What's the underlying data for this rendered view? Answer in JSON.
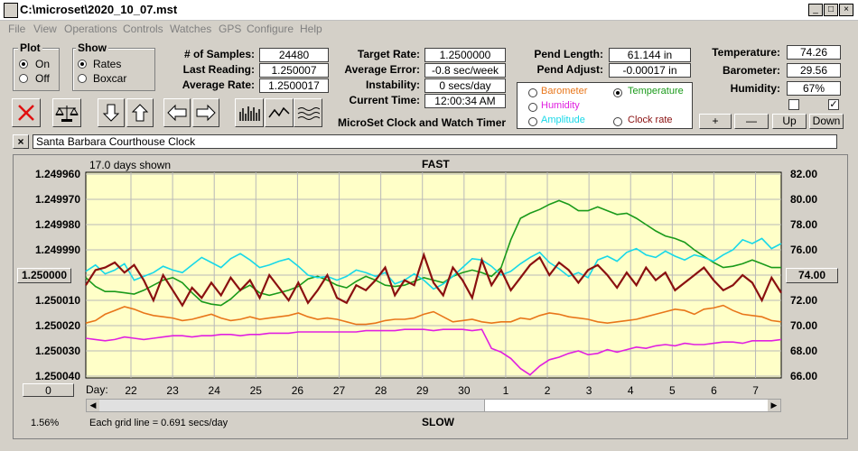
{
  "window": {
    "title": "C:\\microset\\2020_10_07.mst",
    "min_glyph": "_",
    "max_glyph": "□",
    "close_glyph": "×"
  },
  "menu": [
    "File",
    "View",
    "Operations",
    "Controls",
    "Watches",
    "GPS",
    "Configure",
    "Help"
  ],
  "plot_group": {
    "title": "Plot",
    "options": [
      "On",
      "Off"
    ],
    "selected": "On"
  },
  "show_group": {
    "title": "Show",
    "options": [
      "Rates",
      "Boxcar"
    ],
    "selected": "Rates"
  },
  "stats_left": {
    "samples_label": "# of Samples:",
    "samples_value": "24480",
    "last_label": "Last Reading:",
    "last_value": "1.250007",
    "avg_label": "Average Rate:",
    "avg_value": "1.2500017"
  },
  "stats_mid": {
    "target_label": "Target Rate:",
    "target_value": "1.2500000",
    "avgerr_label": "Average Error:",
    "avgerr_value": "-0.8 sec/week",
    "instab_label": "Instability:",
    "instab_value": "0 secs/day",
    "time_label": "Current Time:",
    "time_value": "12:00:34 AM",
    "app_caption": "MicroSet Clock and Watch Timer"
  },
  "pend": {
    "length_label": "Pend Length:",
    "length_value": "61.144 in",
    "adjust_label": "Pend Adjust:",
    "adjust_value": "-0.00017 in"
  },
  "env": {
    "temp_label": "Temperature:",
    "temp_value": "74.26",
    "baro_label": "Barometer:",
    "baro_value": "29.56",
    "hum_label": "Humidity:",
    "hum_value": "67%",
    "check1": false,
    "check2": true
  },
  "plot_options": {
    "items": [
      {
        "label": "Barometer",
        "color": "#e8761a",
        "selected": false
      },
      {
        "label": "Temperature",
        "color": "#1a9a1a",
        "selected": true
      },
      {
        "label": "Humidity",
        "color": "#e020e0",
        "selected": false
      },
      {
        "label": "Amplitude",
        "color": "#18d8e8",
        "selected": false
      },
      {
        "label": "Clock rate",
        "color": "#8a1010",
        "selected": false
      }
    ]
  },
  "scale_buttons": {
    "plus": "+",
    "minus": "—",
    "up": "Up",
    "down": "Down"
  },
  "watch_name": "Santa Barbara Courthouse Clock",
  "close_x": "×",
  "chart_data": {
    "type": "line",
    "days_shown": "17.0 days shown",
    "top_label": "FAST",
    "bottom_label": "SLOW",
    "grid_note": "Each grid line = 0.691 secs/day",
    "percent": "1.56%",
    "left_button": "1.250000",
    "right_button": "74.00",
    "zero_button": "0",
    "day_prefix": "Day:",
    "y_left_ticks": [
      "1.249960",
      "1.249970",
      "1.249980",
      "1.249990",
      "",
      "1.250010",
      "1.250020",
      "1.250030",
      "1.250040"
    ],
    "y_right_ticks": [
      "82.00",
      "80.00",
      "78.00",
      "76.00",
      "",
      "72.00",
      "70.00",
      "68.00",
      "66.00"
    ],
    "x_ticks": [
      "22",
      "23",
      "24",
      "25",
      "26",
      "27",
      "28",
      "29",
      "30",
      "1",
      "2",
      "3",
      "4",
      "5",
      "6",
      "7"
    ],
    "left_ylim": [
      1.24996,
      1.25004
    ],
    "right_ylim": [
      66,
      82
    ],
    "series": [
      {
        "name": "Barometer",
        "color": "#e8761a",
        "axis": "right",
        "values": [
          70.2,
          70.4,
          70.9,
          71.2,
          71.5,
          71.3,
          71.0,
          70.8,
          70.7,
          70.6,
          70.4,
          70.5,
          70.7,
          70.9,
          70.6,
          70.4,
          70.5,
          70.7,
          70.5,
          70.6,
          70.7,
          70.8,
          71.0,
          70.7,
          70.5,
          70.6,
          70.5,
          70.3,
          70.1,
          70.1,
          70.2,
          70.4,
          70.5,
          70.5,
          70.6,
          70.9,
          71.1,
          70.7,
          70.3,
          70.4,
          70.5,
          70.3,
          70.2,
          70.3,
          70.3,
          70.6,
          70.5,
          70.8,
          71.0,
          70.9,
          70.7,
          70.6,
          70.5,
          70.3,
          70.2,
          70.3,
          70.4,
          70.5,
          70.7,
          70.9,
          71.1,
          71.3,
          71.2,
          70.9,
          71.3,
          71.4,
          71.6,
          71.2,
          70.9,
          70.8,
          70.7,
          70.4,
          70.3
        ]
      },
      {
        "name": "Temperature",
        "color": "#1a9a1a",
        "axis": "right",
        "values": [
          73.8,
          73.1,
          72.7,
          72.7,
          72.6,
          72.5,
          72.8,
          73.2,
          73.6,
          73.8,
          73.4,
          72.6,
          71.9,
          71.7,
          71.6,
          72.1,
          72.8,
          73.2,
          72.6,
          72.4,
          72.6,
          72.8,
          73.1,
          73.7,
          73.9,
          73.6,
          73.2,
          73.0,
          73.5,
          73.9,
          73.6,
          73.2,
          73.1,
          73.2,
          73.5,
          73.8,
          73.6,
          73.4,
          73.9,
          74.2,
          74.4,
          74.2,
          73.9,
          74.6,
          76.8,
          78.5,
          78.9,
          79.2,
          79.6,
          79.9,
          79.6,
          79.1,
          79.1,
          79.4,
          79.1,
          78.8,
          78.9,
          78.5,
          78.0,
          77.5,
          77.1,
          76.9,
          76.6,
          76.0,
          75.5,
          75.0,
          74.6,
          74.7,
          74.9,
          75.2,
          74.9,
          74.6,
          74.6
        ]
      },
      {
        "name": "Humidity",
        "color": "#e020e0",
        "axis": "right",
        "values": [
          69.0,
          68.9,
          68.8,
          68.9,
          69.1,
          69.0,
          68.9,
          69.0,
          69.1,
          69.2,
          69.2,
          69.1,
          69.2,
          69.2,
          69.3,
          69.3,
          69.2,
          69.3,
          69.3,
          69.4,
          69.4,
          69.4,
          69.5,
          69.5,
          69.5,
          69.5,
          69.5,
          69.5,
          69.5,
          69.6,
          69.6,
          69.6,
          69.6,
          69.7,
          69.7,
          69.7,
          69.6,
          69.7,
          69.7,
          69.7,
          69.6,
          69.7,
          68.2,
          67.9,
          67.4,
          66.6,
          66.1,
          66.8,
          67.3,
          67.5,
          67.8,
          68.0,
          67.7,
          67.8,
          68.1,
          67.9,
          68.1,
          68.3,
          68.2,
          68.4,
          68.5,
          68.4,
          68.6,
          68.5,
          68.5,
          68.6,
          68.7,
          68.7,
          68.6,
          68.8,
          68.8,
          68.8,
          68.9
        ]
      },
      {
        "name": "Amplitude",
        "color": "#18d8e8",
        "axis": "right",
        "values": [
          74.3,
          74.8,
          74.1,
          74.4,
          74.9,
          73.6,
          73.9,
          74.2,
          74.7,
          74.4,
          74.2,
          74.8,
          75.4,
          75.0,
          74.6,
          75.3,
          75.7,
          75.2,
          74.6,
          74.8,
          75.1,
          75.3,
          74.7,
          74.0,
          73.8,
          73.9,
          73.6,
          73.9,
          74.4,
          74.2,
          73.9,
          74.2,
          73.3,
          73.6,
          74.1,
          73.6,
          72.9,
          73.3,
          73.9,
          74.6,
          75.3,
          75.2,
          74.7,
          74.0,
          74.3,
          74.9,
          75.4,
          75.8,
          75.0,
          74.5,
          73.9,
          74.2,
          73.8,
          75.2,
          75.5,
          75.1,
          75.8,
          76.1,
          75.6,
          75.4,
          75.9,
          75.5,
          75.2,
          75.6,
          75.4,
          75.1,
          75.6,
          76.0,
          76.8,
          76.5,
          76.9,
          76.1,
          76.5
        ]
      },
      {
        "name": "Clock rate",
        "color": "#8a1010",
        "axis": "left",
        "values": [
          1.250004,
          1.249998,
          1.249997,
          1.249995,
          1.249999,
          1.249996,
          1.250002,
          1.25001,
          1.25,
          1.250006,
          1.250012,
          1.250005,
          1.250009,
          1.250003,
          1.250008,
          1.250001,
          1.250006,
          1.250002,
          1.250009,
          1.25,
          1.250005,
          1.25001,
          1.250003,
          1.250011,
          1.250006,
          1.25,
          1.250009,
          1.250011,
          1.250004,
          1.250006,
          1.250002,
          1.249997,
          1.250008,
          1.250002,
          1.250004,
          1.249992,
          1.250003,
          1.250008,
          1.249997,
          1.250002,
          1.250009,
          1.249994,
          1.250004,
          1.249998,
          1.250006,
          1.250001,
          1.249996,
          1.249993,
          1.25,
          1.249995,
          1.249998,
          1.250003,
          1.249998,
          1.249996,
          1.25,
          1.250005,
          1.249999,
          1.250004,
          1.249997,
          1.250002,
          1.249999,
          1.250006,
          1.250003,
          1.25,
          1.249997,
          1.250002,
          1.250006,
          1.250004,
          1.25,
          1.250003,
          1.25001,
          1.250001,
          1.250007
        ]
      }
    ]
  }
}
